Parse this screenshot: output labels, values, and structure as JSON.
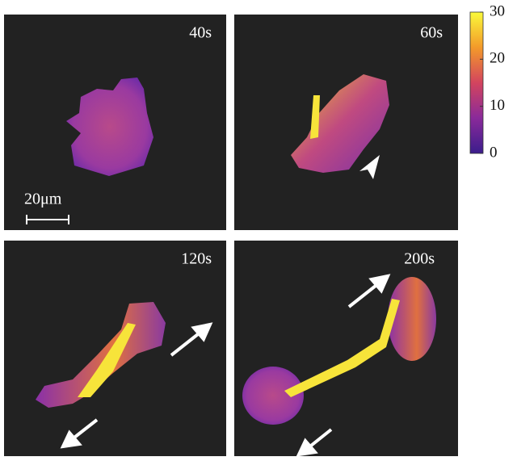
{
  "panels": [
    {
      "label": "40s"
    },
    {
      "label": "60s"
    },
    {
      "label": "120s"
    },
    {
      "label": "200s"
    }
  ],
  "scale_bar": {
    "label": "20μm"
  },
  "colorbar": {
    "ticks": [
      30,
      20,
      10,
      0
    ]
  }
}
